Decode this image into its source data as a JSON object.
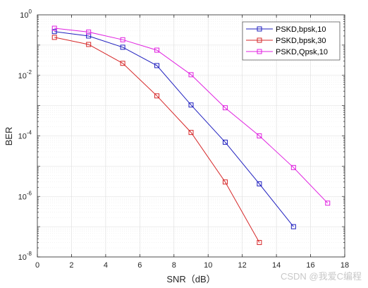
{
  "chart_data": {
    "type": "line",
    "xlabel": "SNR（dB）",
    "ylabel": "BER",
    "xlim": [
      0,
      18
    ],
    "ylim": [
      1e-08,
      1
    ],
    "yscale": "log",
    "xticks": [
      0,
      2,
      4,
      6,
      8,
      10,
      12,
      14,
      16,
      18
    ],
    "yticks": [
      {
        "value": 1e-08,
        "label": "10",
        "exp": "-8"
      },
      {
        "value": 1e-06,
        "label": "10",
        "exp": "-6"
      },
      {
        "value": 0.0001,
        "label": "10",
        "exp": "-4"
      },
      {
        "value": 0.01,
        "label": "10",
        "exp": "-2"
      },
      {
        "value": 1,
        "label": "10",
        "exp": "0"
      }
    ],
    "grid": true,
    "legend_position": "top-right",
    "series": [
      {
        "name": "PSKD,bpsk,10",
        "color": "#1f1fbf",
        "marker": "square",
        "x": [
          1,
          3,
          5,
          7,
          9,
          11,
          13,
          15
        ],
        "y": [
          0.28,
          0.2,
          0.085,
          0.021,
          0.00105,
          6.2e-05,
          2.6e-06,
          1e-07
        ]
      },
      {
        "name": "PSKD,bpsk,30",
        "color": "#d62728",
        "marker": "square",
        "x": [
          1,
          3,
          5,
          7,
          9,
          11,
          13
        ],
        "y": [
          0.18,
          0.105,
          0.025,
          0.0021,
          0.00013,
          3e-06,
          3e-08
        ]
      },
      {
        "name": "PSKD,Qpsk,10",
        "color": "#e020e0",
        "marker": "square",
        "x": [
          1,
          3,
          5,
          7,
          9,
          11,
          13,
          15,
          17
        ],
        "y": [
          0.36,
          0.27,
          0.15,
          0.068,
          0.0105,
          0.00085,
          0.0001,
          9e-06,
          6e-07
        ]
      }
    ]
  },
  "watermark": "CSDN @我爱C编程"
}
